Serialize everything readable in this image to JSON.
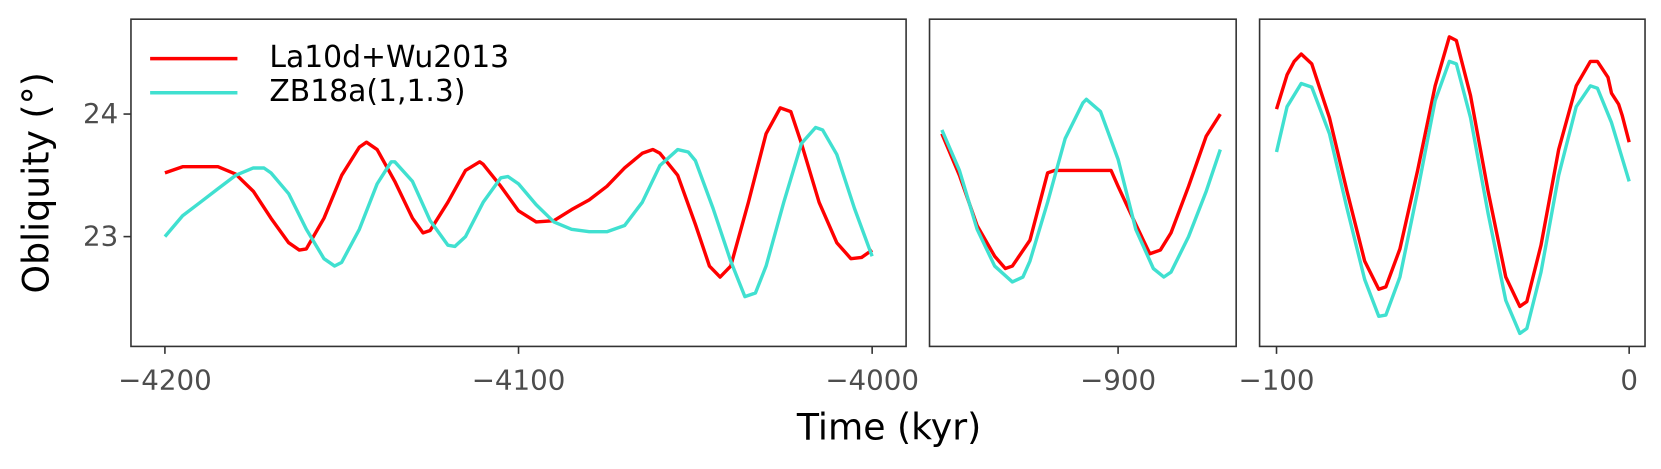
{
  "chart_data": [
    {
      "type": "line",
      "y_label": "Obliquity (°)",
      "xlim": [
        -4209.6,
        -3990.4
      ],
      "ylim": [
        22.104,
        24.774
      ],
      "xticks": [
        {
          "value": -4200,
          "label": "−4200"
        },
        {
          "value": -4100,
          "label": "−4100"
        },
        {
          "value": -4000,
          "label": "−4000"
        }
      ],
      "yticks": [
        23,
        24
      ],
      "legend": "top-left",
      "series": [
        {
          "name": "La10d+Wu2013",
          "color": "#ff0000",
          "x": [
            -4200,
            -4195,
            -4190,
            -4185,
            -4180,
            -4175,
            -4170,
            -4165,
            -4162,
            -4160,
            -4155,
            -4150,
            -4145,
            -4143,
            -4140,
            -4135,
            -4130,
            -4127,
            -4125,
            -4120,
            -4115,
            -4111,
            -4110,
            -4105,
            -4100,
            -4095,
            -4090,
            -4085,
            -4080,
            -4075,
            -4070,
            -4065,
            -4062,
            -4060,
            -4055,
            -4050,
            -4046,
            -4043,
            -4040,
            -4035,
            -4030,
            -4026,
            -4023,
            -4020,
            -4015,
            -4010,
            -4006,
            -4003,
            -4000
          ],
          "values": [
            23.52,
            23.57,
            23.57,
            23.57,
            23.51,
            23.37,
            23.15,
            22.95,
            22.89,
            22.9,
            23.15,
            23.5,
            23.73,
            23.77,
            23.71,
            23.45,
            23.15,
            23.03,
            23.05,
            23.28,
            23.54,
            23.61,
            23.59,
            23.41,
            23.21,
            23.12,
            23.13,
            23.22,
            23.3,
            23.41,
            23.56,
            23.68,
            23.71,
            23.68,
            23.5,
            23.1,
            22.76,
            22.67,
            22.76,
            23.28,
            23.84,
            24.05,
            24.02,
            23.76,
            23.28,
            22.95,
            22.82,
            22.83,
            22.89
          ]
        },
        {
          "name": "ZB18a(1,1.3)",
          "color": "#40e0d0",
          "x": [
            -4200,
            -4195,
            -4190,
            -4185,
            -4180,
            -4175,
            -4172,
            -4170,
            -4165,
            -4160,
            -4155,
            -4152,
            -4150,
            -4145,
            -4140,
            -4136,
            -4135,
            -4130,
            -4125,
            -4120,
            -4118,
            -4115,
            -4110,
            -4105,
            -4103,
            -4100,
            -4095,
            -4090,
            -4085,
            -4080,
            -4075,
            -4070,
            -4065,
            -4060,
            -4055,
            -4052,
            -4050,
            -4045,
            -4040,
            -4036,
            -4033,
            -4030,
            -4025,
            -4020,
            -4016,
            -4014,
            -4010,
            -4005,
            -4000
          ],
          "values": [
            23.0,
            23.17,
            23.28,
            23.39,
            23.5,
            23.56,
            23.56,
            23.52,
            23.35,
            23.06,
            22.82,
            22.76,
            22.79,
            23.06,
            23.43,
            23.61,
            23.61,
            23.45,
            23.13,
            22.93,
            22.92,
            23.0,
            23.28,
            23.48,
            23.49,
            23.43,
            23.26,
            23.12,
            23.06,
            23.04,
            23.04,
            23.09,
            23.28,
            23.58,
            23.71,
            23.69,
            23.62,
            23.23,
            22.8,
            22.51,
            22.54,
            22.76,
            23.28,
            23.76,
            23.89,
            23.87,
            23.67,
            23.23,
            22.84
          ]
        }
      ]
    },
    {
      "type": "line",
      "x_label": "Time (kyr)",
      "xlim": [
        -953.5,
        -866.5
      ],
      "ylim": [
        22.104,
        24.774
      ],
      "xticks": [
        {
          "value": -900,
          "label": "−900"
        }
      ],
      "series": [
        {
          "color": "#ff0000",
          "x": [
            -950,
            -945,
            -940,
            -935,
            -932,
            -930,
            -925,
            -920,
            -918,
            -915,
            -910,
            -905,
            -902,
            -900,
            -895,
            -891,
            -888,
            -885,
            -880,
            -875,
            -871
          ],
          "values": [
            23.84,
            23.5,
            23.09,
            22.84,
            22.74,
            22.76,
            22.97,
            23.52,
            23.54,
            23.54,
            23.54,
            23.54,
            23.54,
            23.41,
            23.1,
            22.86,
            22.89,
            23.03,
            23.41,
            23.82,
            24.0
          ]
        },
        {
          "color": "#40e0d0",
          "x": [
            -950,
            -945,
            -940,
            -935,
            -930,
            -927,
            -925,
            -920,
            -915,
            -910,
            -909,
            -905,
            -900,
            -895,
            -890,
            -887,
            -885,
            -880,
            -875,
            -871
          ],
          "values": [
            23.87,
            23.54,
            23.06,
            22.76,
            22.63,
            22.67,
            22.8,
            23.28,
            23.8,
            24.09,
            24.12,
            24.02,
            23.63,
            23.06,
            22.74,
            22.67,
            22.71,
            23.0,
            23.37,
            23.71
          ]
        }
      ]
    },
    {
      "type": "line",
      "xlim": [
        -104.8,
        4.5
      ],
      "ylim": [
        22.104,
        24.774
      ],
      "xticks": [
        {
          "value": -100,
          "label": "−100"
        },
        0
      ],
      "series": [
        {
          "color": "#ff0000",
          "x": [
            -100,
            -97,
            -95,
            -93,
            -90,
            -85,
            -80,
            -75,
            -71,
            -69,
            -65,
            -60,
            -55,
            -51,
            -49,
            -45,
            -40,
            -35,
            -31,
            -29,
            -25,
            -20,
            -15,
            -11,
            -9,
            -6,
            -5,
            -3,
            -2,
            0
          ],
          "values": [
            24.04,
            24.32,
            24.43,
            24.49,
            24.41,
            23.97,
            23.37,
            22.8,
            22.57,
            22.59,
            22.9,
            23.54,
            24.23,
            24.63,
            24.6,
            24.15,
            23.37,
            22.67,
            22.43,
            22.47,
            22.93,
            23.71,
            24.23,
            24.43,
            24.43,
            24.3,
            24.17,
            24.08,
            23.99,
            23.77
          ]
        },
        {
          "color": "#40e0d0",
          "x": [
            -100,
            -97,
            -93,
            -90,
            -85,
            -80,
            -75,
            -71,
            -69,
            -65,
            -60,
            -55,
            -51,
            -49,
            -45,
            -40,
            -35,
            -31,
            -29,
            -25,
            -20,
            -15,
            -11,
            -9,
            -5,
            0
          ],
          "values": [
            23.69,
            24.06,
            24.25,
            24.22,
            23.84,
            23.23,
            22.65,
            22.35,
            22.36,
            22.67,
            23.37,
            24.11,
            24.43,
            24.41,
            23.97,
            23.19,
            22.48,
            22.21,
            22.25,
            22.71,
            23.5,
            24.06,
            24.23,
            24.21,
            23.93,
            23.45
          ]
        }
      ]
    }
  ]
}
